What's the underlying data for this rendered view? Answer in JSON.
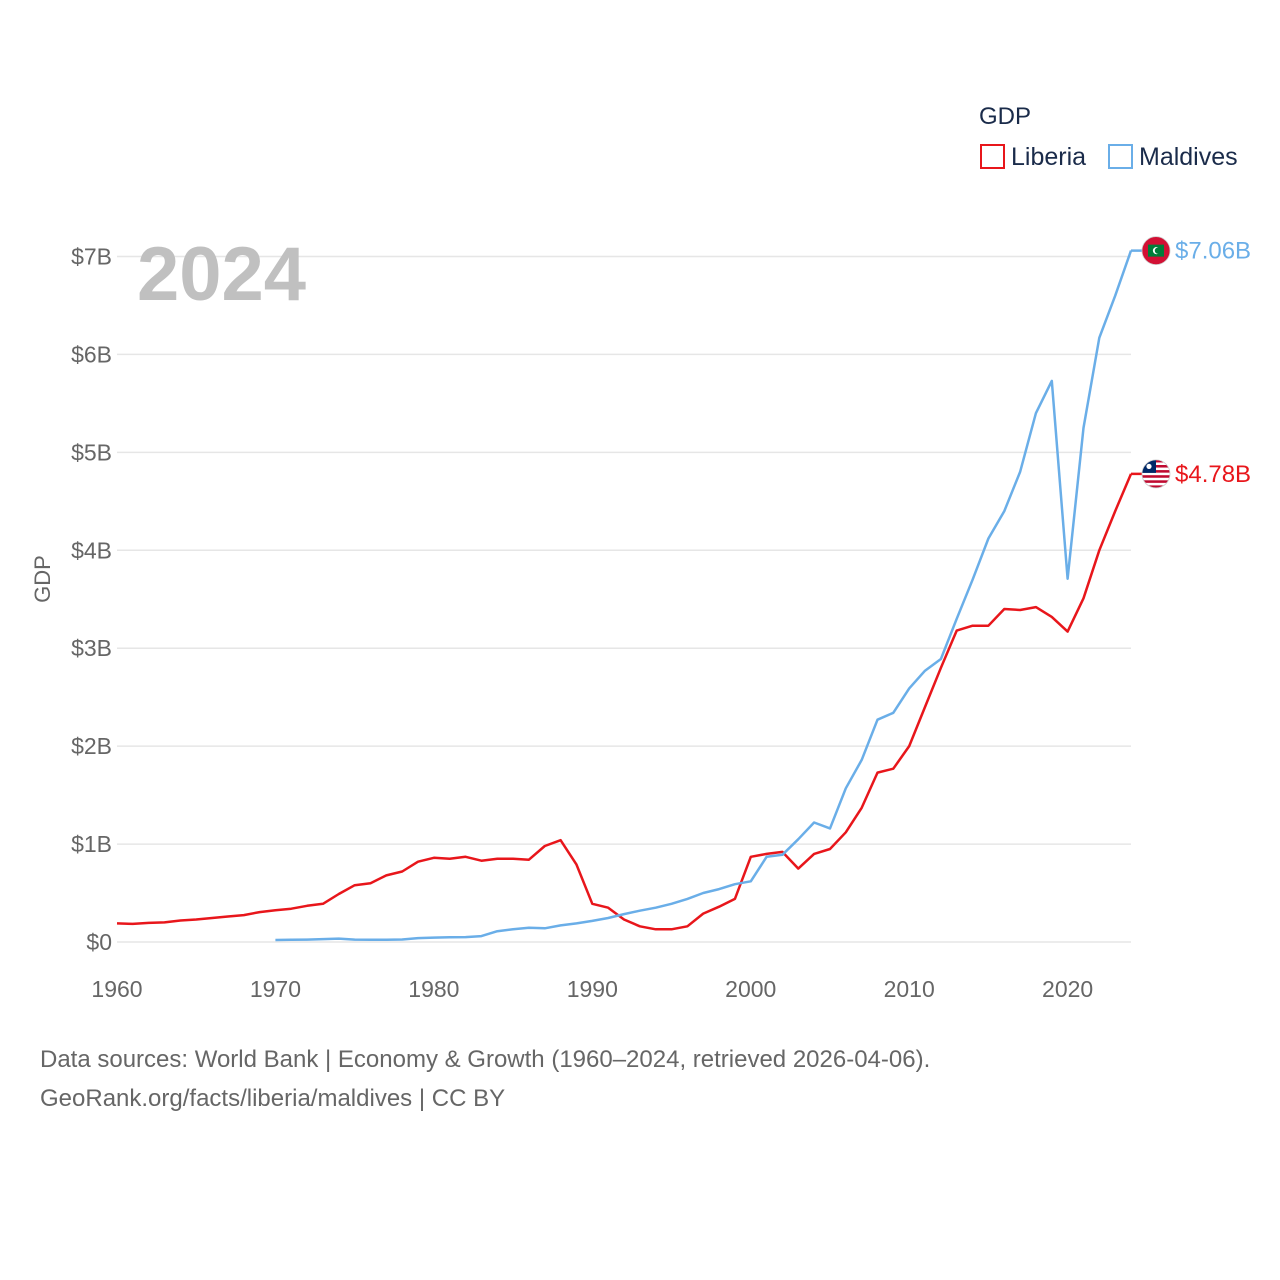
{
  "chart_data": {
    "type": "line",
    "title": "GDP",
    "current_year": "2024",
    "ylabel": "GDP",
    "xlabel": "",
    "xlim": [
      1960,
      2024
    ],
    "ylim": [
      0,
      7
    ],
    "x_ticks": [
      1960,
      1970,
      1980,
      1990,
      2000,
      2010,
      2020
    ],
    "y_ticks": [
      {
        "value": 0,
        "label": "$0"
      },
      {
        "value": 1,
        "label": "$1B"
      },
      {
        "value": 2,
        "label": "$2B"
      },
      {
        "value": 3,
        "label": "$3B"
      },
      {
        "value": 4,
        "label": "$4B"
      },
      {
        "value": 5,
        "label": "$5B"
      },
      {
        "value": 6,
        "label": "$6B"
      },
      {
        "value": 7,
        "label": "$7B"
      }
    ],
    "units": "billions USD",
    "series": [
      {
        "name": "Liberia",
        "color": "#e8161b",
        "end_label": "$4.78B",
        "flag": "liberia-flag",
        "x": [
          1960,
          1961,
          1962,
          1963,
          1964,
          1965,
          1966,
          1967,
          1968,
          1969,
          1970,
          1971,
          1972,
          1973,
          1974,
          1975,
          1976,
          1977,
          1978,
          1979,
          1980,
          1981,
          1982,
          1983,
          1984,
          1985,
          1986,
          1987,
          1988,
          1989,
          1990,
          1991,
          1992,
          1993,
          1994,
          1995,
          1996,
          1997,
          1998,
          1999,
          2000,
          2001,
          2002,
          2003,
          2004,
          2005,
          2006,
          2007,
          2008,
          2009,
          2010,
          2011,
          2012,
          2013,
          2014,
          2015,
          2016,
          2017,
          2018,
          2019,
          2020,
          2021,
          2022,
          2023,
          2024
        ],
        "values": [
          0.19,
          0.185,
          0.195,
          0.2,
          0.22,
          0.23,
          0.245,
          0.26,
          0.275,
          0.305,
          0.325,
          0.34,
          0.37,
          0.39,
          0.49,
          0.58,
          0.6,
          0.68,
          0.72,
          0.82,
          0.86,
          0.85,
          0.87,
          0.83,
          0.85,
          0.85,
          0.84,
          0.98,
          1.04,
          0.79,
          0.39,
          0.35,
          0.23,
          0.16,
          0.13,
          0.13,
          0.16,
          0.29,
          0.36,
          0.44,
          0.87,
          0.9,
          0.92,
          0.75,
          0.9,
          0.95,
          1.12,
          1.37,
          1.73,
          1.77,
          2.0,
          2.4,
          2.8,
          3.18,
          3.23,
          3.23,
          3.4,
          3.39,
          3.42,
          3.32,
          3.17,
          3.51,
          4.0,
          4.4,
          4.78
        ]
      },
      {
        "name": "Maldives",
        "color": "#6aaee8",
        "end_label": "$7.06B",
        "flag": "maldives-flag",
        "x": [
          1970,
          1971,
          1972,
          1973,
          1974,
          1975,
          1976,
          1977,
          1978,
          1979,
          1980,
          1981,
          1982,
          1983,
          1984,
          1985,
          1986,
          1987,
          1988,
          1989,
          1990,
          1991,
          1992,
          1993,
          1994,
          1995,
          1996,
          1997,
          1998,
          1999,
          2000,
          2001,
          2002,
          2003,
          2004,
          2005,
          2006,
          2007,
          2008,
          2009,
          2010,
          2011,
          2012,
          2013,
          2014,
          2015,
          2016,
          2017,
          2018,
          2019,
          2020,
          2021,
          2022,
          2023,
          2024
        ],
        "values": [
          0.02,
          0.022,
          0.025,
          0.03,
          0.035,
          0.025,
          0.022,
          0.022,
          0.026,
          0.04,
          0.045,
          0.048,
          0.05,
          0.06,
          0.11,
          0.13,
          0.145,
          0.14,
          0.17,
          0.19,
          0.215,
          0.245,
          0.285,
          0.32,
          0.35,
          0.39,
          0.44,
          0.5,
          0.54,
          0.59,
          0.62,
          0.87,
          0.89,
          1.05,
          1.22,
          1.16,
          1.57,
          1.86,
          2.27,
          2.34,
          2.59,
          2.77,
          2.89,
          3.3,
          3.7,
          4.12,
          4.4,
          4.8,
          5.4,
          5.73,
          3.71,
          5.25,
          6.17,
          6.6,
          7.06
        ]
      }
    ]
  },
  "legend": {
    "title": "GDP",
    "items": [
      {
        "label": "Liberia",
        "color": "#e8161b"
      },
      {
        "label": "Maldives",
        "color": "#6aaee8"
      }
    ]
  },
  "source": {
    "line1": "Data sources: World Bank | Economy & Growth (1960–2024, retrieved 2026-04-06).",
    "line2": "GeoRank.org/facts/liberia/maldives | CC BY"
  }
}
